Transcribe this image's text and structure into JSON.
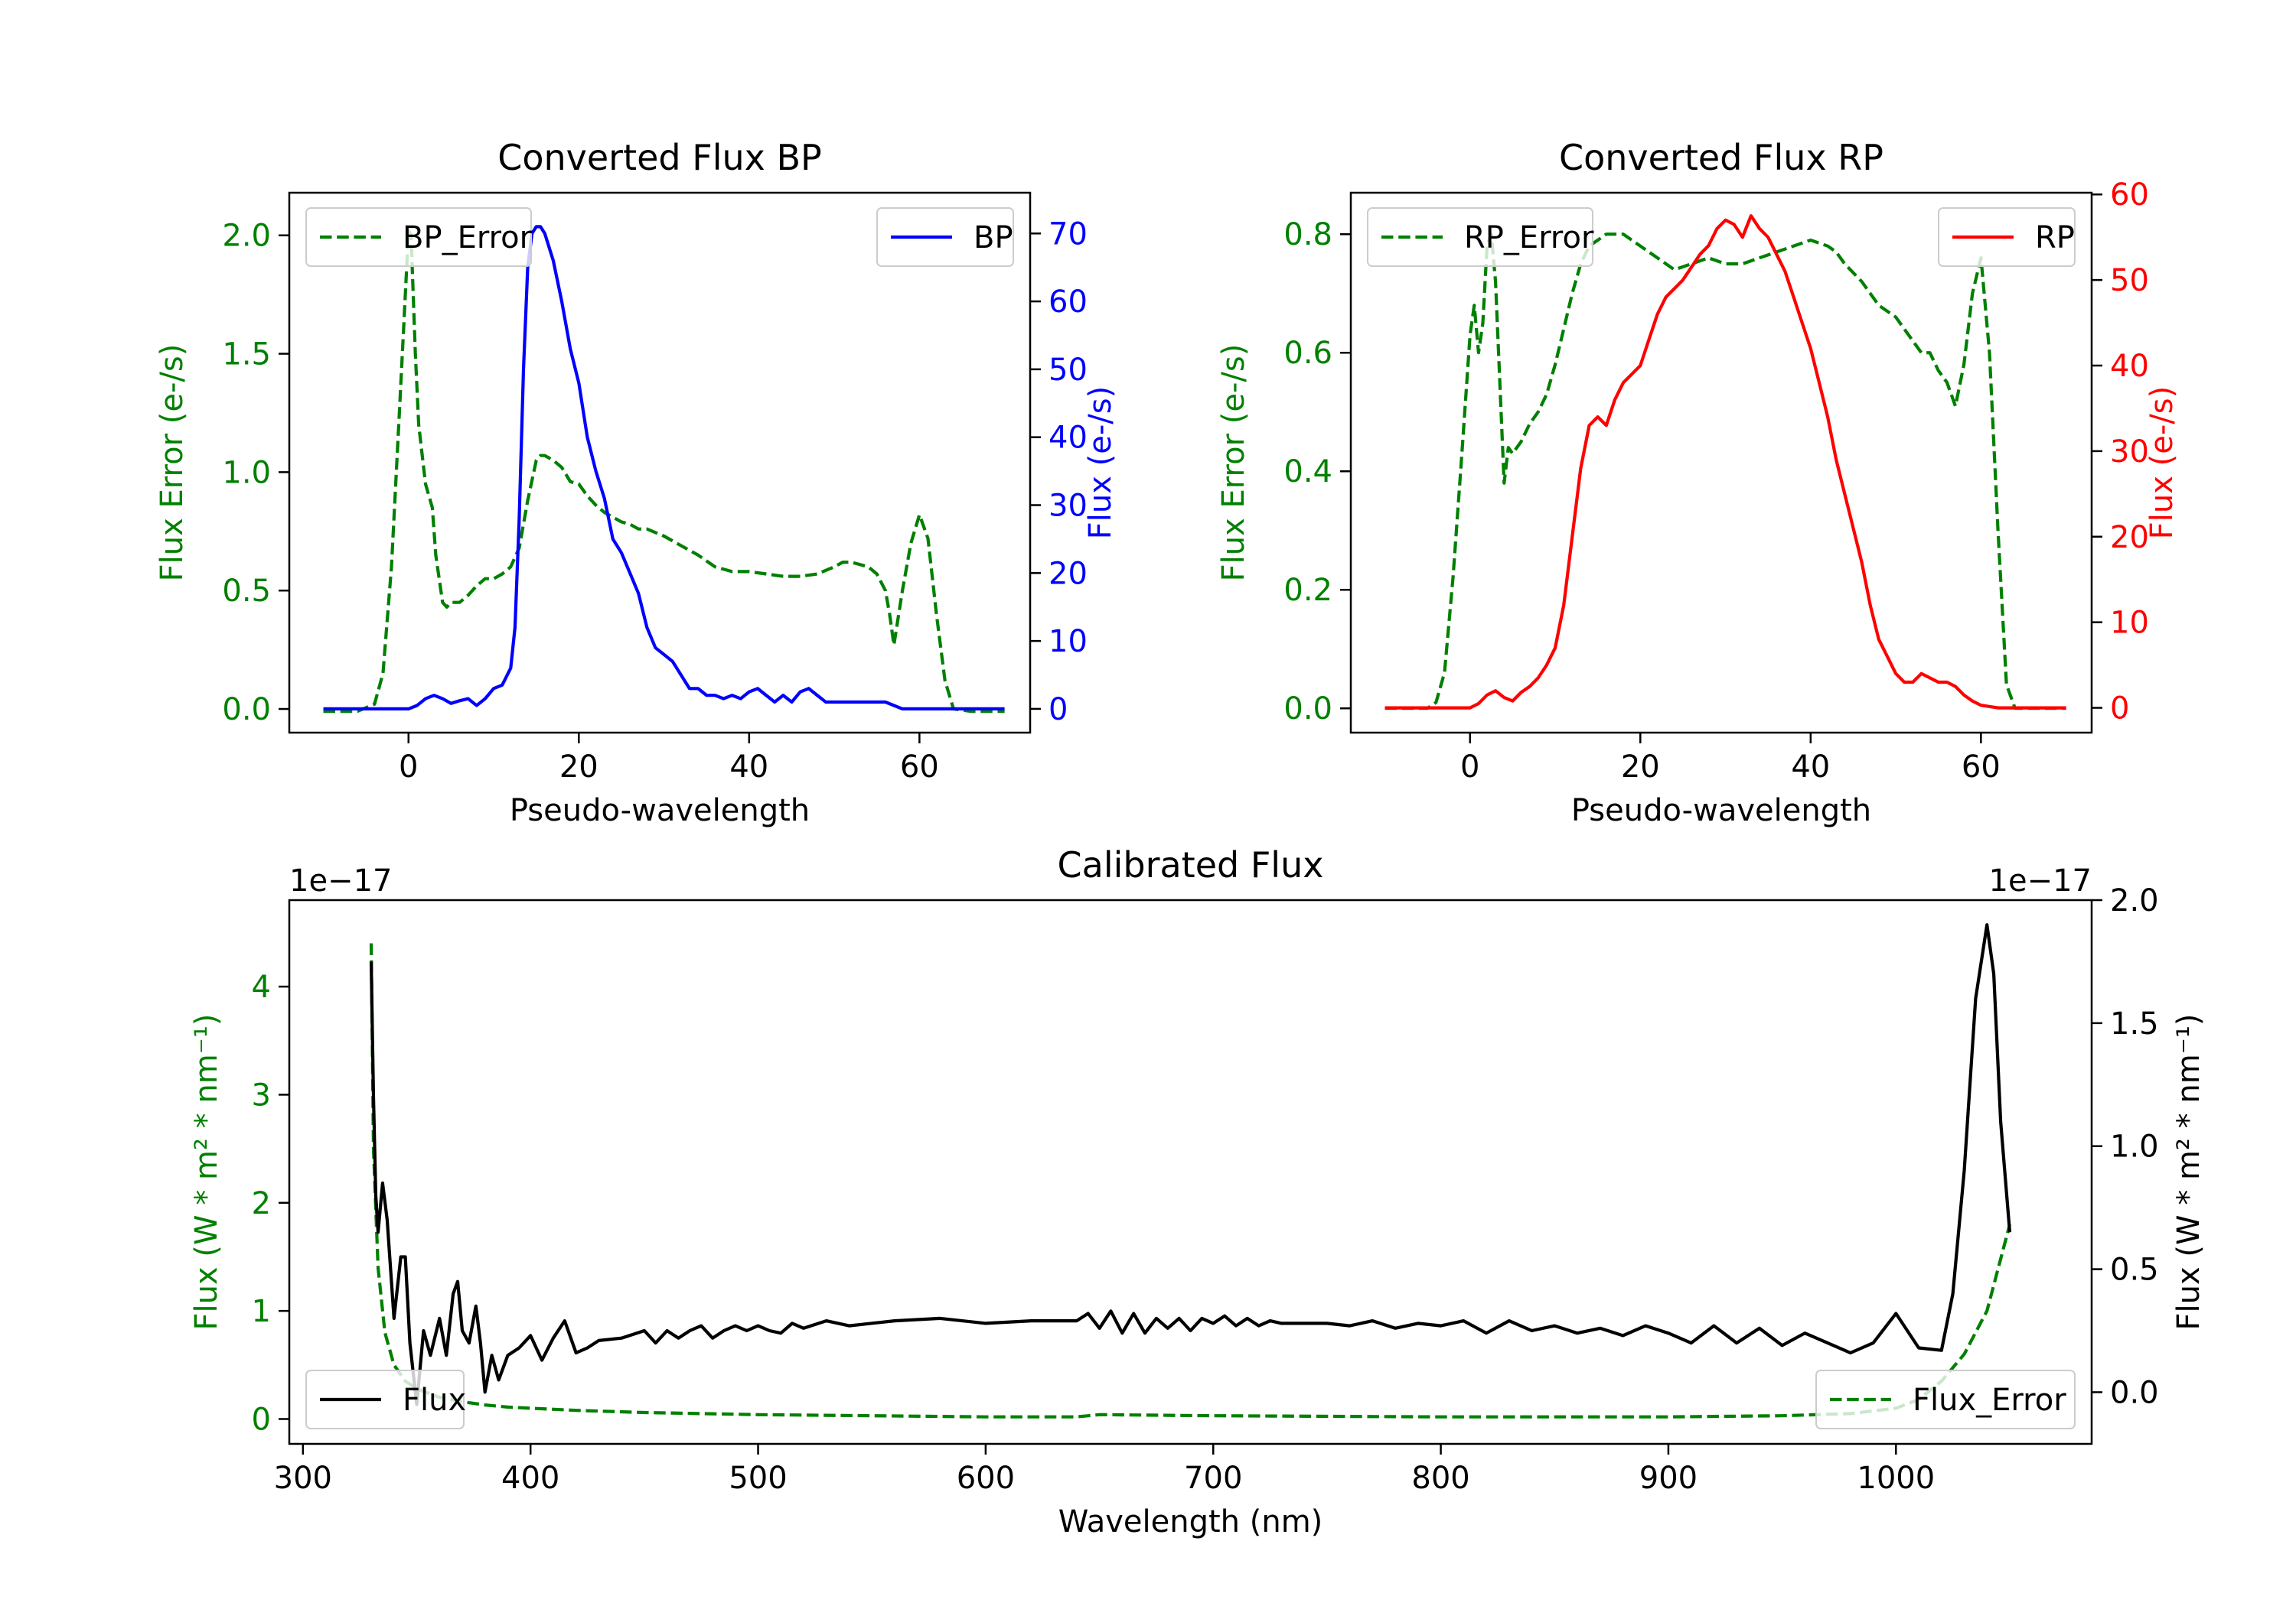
{
  "colors": {
    "error": "#008000",
    "bp": "#0000ff",
    "rp": "#ff0000",
    "flux": "#000000",
    "axis": "#000000"
  },
  "chart_data": [
    {
      "id": "bp",
      "type": "line",
      "title": "Converted Flux BP",
      "xlabel": "Pseudo-wavelength",
      "ylabel_left": "Flux Error (e-/s)",
      "ylabel_right": "Flux (e-/s)",
      "xlim": [
        -14,
        73
      ],
      "ylim_left": [
        -0.1,
        2.18
      ],
      "ylim_right": [
        -3.5,
        76
      ],
      "xticks": [
        0,
        20,
        40,
        60
      ],
      "yticks_left": [
        0.0,
        0.5,
        1.0,
        1.5,
        2.0
      ],
      "yticks_left_labels": [
        "0.0",
        "0.5",
        "1.0",
        "1.5",
        "2.0"
      ],
      "yticks_right": [
        0,
        10,
        20,
        30,
        40,
        50,
        60,
        70
      ],
      "yticks_right_labels": [
        "0",
        "10",
        "20",
        "30",
        "40",
        "50",
        "60",
        "70"
      ],
      "legend_left": {
        "label": "BP_Error",
        "position": "upper left"
      },
      "legend_right": {
        "label": "BP",
        "position": "upper right"
      },
      "series": [
        {
          "name": "BP_Error",
          "axis": "left",
          "style": "dashed",
          "color": "#008000",
          "x": [
            -10,
            -6,
            -4,
            -3,
            -2,
            -1,
            0,
            0.3,
            0.8,
            1.2,
            2,
            2.8,
            3.2,
            4,
            4.5,
            5,
            6,
            7,
            8,
            9,
            10,
            11,
            12,
            13,
            14,
            15,
            15.5,
            16,
            17,
            18,
            19,
            20,
            21,
            22,
            23,
            24,
            25,
            26,
            27,
            28,
            30,
            32,
            34,
            36,
            38,
            40,
            42,
            44,
            46,
            48,
            50,
            51,
            52,
            54,
            55,
            56,
            56.5,
            57,
            58,
            59,
            60,
            61,
            62,
            63,
            64,
            66,
            68,
            70
          ],
          "y": [
            -0.01,
            -0.01,
            0.02,
            0.15,
            0.6,
            1.3,
            2.02,
            2.0,
            1.5,
            1.2,
            0.95,
            0.85,
            0.65,
            0.45,
            0.43,
            0.45,
            0.45,
            0.48,
            0.52,
            0.55,
            0.55,
            0.57,
            0.6,
            0.68,
            0.88,
            1.05,
            1.07,
            1.07,
            1.05,
            1.02,
            0.96,
            0.95,
            0.9,
            0.86,
            0.83,
            0.81,
            0.79,
            0.78,
            0.76,
            0.76,
            0.73,
            0.69,
            0.65,
            0.6,
            0.58,
            0.58,
            0.57,
            0.56,
            0.56,
            0.57,
            0.6,
            0.62,
            0.62,
            0.6,
            0.57,
            0.5,
            0.4,
            0.27,
            0.5,
            0.7,
            0.82,
            0.72,
            0.4,
            0.12,
            0.0,
            -0.01,
            -0.01,
            -0.01
          ]
        },
        {
          "name": "BP",
          "axis": "right",
          "style": "solid",
          "color": "#0000ff",
          "x": [
            -10,
            -5,
            -2,
            0,
            1,
            2,
            3,
            4,
            5,
            6,
            7,
            8,
            9,
            10,
            11,
            12,
            12.5,
            13,
            13.5,
            14,
            14.5,
            15,
            15.5,
            16,
            17,
            18,
            19,
            20,
            21,
            22,
            23,
            24,
            25,
            26,
            27,
            28,
            29,
            30,
            31,
            32,
            33,
            34,
            35,
            36,
            37,
            38,
            39,
            40,
            41,
            42,
            43,
            44,
            45,
            46,
            47,
            48,
            49,
            50,
            52,
            54,
            56,
            58,
            60,
            62,
            64,
            66,
            68,
            70
          ],
          "y": [
            0,
            0,
            0,
            0,
            0.5,
            1.5,
            2,
            1.5,
            0.8,
            1.2,
            1.5,
            0.5,
            1.5,
            3,
            3.5,
            6,
            12,
            28,
            50,
            65,
            70,
            71,
            71,
            70,
            66,
            60,
            53,
            48,
            40,
            35,
            31,
            25,
            23,
            20,
            17,
            12,
            9,
            8,
            7,
            5,
            3,
            3,
            2,
            2,
            1.5,
            2,
            1.5,
            2.5,
            3,
            2,
            1,
            2,
            1,
            2.5,
            3,
            2,
            1,
            1,
            1,
            1,
            1,
            0,
            0,
            0,
            0,
            0,
            0,
            0
          ]
        }
      ]
    },
    {
      "id": "rp",
      "type": "line",
      "title": "Converted Flux RP",
      "xlabel": "Pseudo-wavelength",
      "ylabel_left": "Flux Error (e-/s)",
      "ylabel_right": "Flux (e-/s)",
      "xlim": [
        -14,
        73
      ],
      "ylim_left": [
        -0.041,
        0.87
      ],
      "ylim_right": [
        -2.9,
        60.2
      ],
      "xticks": [
        0,
        20,
        40,
        60
      ],
      "yticks_left": [
        0.0,
        0.2,
        0.4,
        0.6,
        0.8
      ],
      "yticks_left_labels": [
        "0.0",
        "0.2",
        "0.4",
        "0.6",
        "0.8"
      ],
      "yticks_right": [
        0,
        10,
        20,
        30,
        40,
        50,
        60
      ],
      "yticks_right_labels": [
        "0",
        "10",
        "20",
        "30",
        "40",
        "50",
        "60"
      ],
      "legend_left": {
        "label": "RP_Error",
        "position": "upper left"
      },
      "legend_right": {
        "label": "RP",
        "position": "upper right"
      },
      "series": [
        {
          "name": "RP_Error",
          "axis": "left",
          "style": "dashed",
          "color": "#008000",
          "x": [
            -10,
            -5,
            -4,
            -3,
            -2,
            -1,
            0,
            0.5,
            1,
            1.5,
            2,
            2.5,
            3,
            3.5,
            4,
            4.5,
            5,
            6,
            7,
            8,
            9,
            10,
            11,
            12,
            13,
            14,
            15,
            16,
            17,
            18,
            19,
            20,
            22,
            24,
            26,
            28,
            30,
            32,
            34,
            36,
            38,
            40,
            42,
            43,
            44,
            46,
            48,
            50,
            52,
            53,
            54,
            55,
            56,
            57,
            58,
            59,
            60,
            61,
            62,
            63,
            64,
            66,
            68,
            70
          ],
          "y": [
            0,
            0,
            0.01,
            0.06,
            0.22,
            0.42,
            0.63,
            0.68,
            0.6,
            0.65,
            0.78,
            0.8,
            0.72,
            0.55,
            0.38,
            0.44,
            0.43,
            0.45,
            0.48,
            0.5,
            0.53,
            0.58,
            0.64,
            0.7,
            0.75,
            0.78,
            0.79,
            0.8,
            0.8,
            0.8,
            0.79,
            0.78,
            0.76,
            0.74,
            0.75,
            0.76,
            0.75,
            0.75,
            0.76,
            0.77,
            0.78,
            0.79,
            0.78,
            0.77,
            0.75,
            0.72,
            0.68,
            0.66,
            0.62,
            0.6,
            0.6,
            0.57,
            0.55,
            0.51,
            0.58,
            0.7,
            0.76,
            0.6,
            0.3,
            0.04,
            0.0,
            0,
            0,
            0
          ]
        },
        {
          "name": "RP",
          "axis": "right",
          "style": "solid",
          "color": "#ff0000",
          "x": [
            -10,
            -5,
            -2,
            0,
            1,
            2,
            3,
            4,
            5,
            6,
            7,
            8,
            9,
            10,
            11,
            12,
            13,
            14,
            15,
            16,
            17,
            18,
            19,
            20,
            21,
            22,
            23,
            24,
            25,
            26,
            27,
            28,
            29,
            30,
            31,
            32,
            33,
            34,
            35,
            36,
            37,
            38,
            39,
            40,
            41,
            42,
            43,
            44,
            45,
            46,
            47,
            48,
            49,
            50,
            51,
            52,
            53,
            54,
            55,
            56,
            57,
            58,
            59,
            60,
            62,
            64,
            66,
            68,
            70
          ],
          "y": [
            0,
            0,
            0,
            0,
            0.5,
            1.5,
            2,
            1.2,
            0.8,
            1.8,
            2.5,
            3.5,
            5,
            7,
            12,
            20,
            28,
            33,
            34,
            33,
            36,
            38,
            39,
            40,
            43,
            46,
            48,
            49,
            50,
            51.5,
            53,
            54,
            56,
            57,
            56.5,
            55,
            57.5,
            56,
            55,
            53,
            51,
            48,
            45,
            42,
            38,
            34,
            29,
            25,
            21,
            17,
            12,
            8,
            6,
            4,
            3,
            3,
            4,
            3.5,
            3,
            3,
            2.5,
            1.5,
            0.8,
            0.3,
            0,
            0,
            0,
            0,
            0
          ]
        }
      ]
    },
    {
      "id": "calibrated",
      "type": "line",
      "title": "Calibrated Flux",
      "xlabel": "Wavelength (nm)",
      "ylabel_left": "Flux (W * m² * nm⁻¹)",
      "ylabel_right": "Flux (W * m² * nm⁻¹)",
      "offset_left": "1e−17",
      "offset_right": "1e−17",
      "xlim": [
        294,
        1086
      ],
      "ylim_left": [
        -0.23,
        4.8
      ],
      "ylim_right": [
        -0.21,
        2.0
      ],
      "xticks": [
        300,
        400,
        500,
        600,
        700,
        800,
        900,
        1000
      ],
      "yticks_left": [
        0,
        1,
        2,
        3,
        4
      ],
      "yticks_left_labels": [
        "0",
        "1",
        "2",
        "3",
        "4"
      ],
      "yticks_right": [
        0.0,
        0.5,
        1.0,
        1.5,
        2.0
      ],
      "yticks_right_labels": [
        "0.0",
        "0.5",
        "1.0",
        "1.5",
        "2.0"
      ],
      "legend_left": {
        "label": "Flux",
        "position": "lower left"
      },
      "legend_right": {
        "label": "Flux_Error",
        "position": "lower right"
      },
      "series": [
        {
          "name": "Flux_Error",
          "axis": "left",
          "style": "dashed",
          "color": "#008000",
          "x": [
            330,
            331,
            333,
            336,
            340,
            345,
            350,
            360,
            370,
            380,
            390,
            400,
            420,
            450,
            500,
            550,
            600,
            640,
            650,
            700,
            800,
            900,
            950,
            980,
            1000,
            1010,
            1020,
            1030,
            1040,
            1045,
            1050
          ],
          "y": [
            4.4,
            2.5,
            1.4,
            0.8,
            0.5,
            0.35,
            0.28,
            0.2,
            0.16,
            0.13,
            0.11,
            0.1,
            0.08,
            0.06,
            0.04,
            0.03,
            0.02,
            0.02,
            0.04,
            0.03,
            0.02,
            0.02,
            0.03,
            0.05,
            0.1,
            0.18,
            0.35,
            0.6,
            1.0,
            1.4,
            1.8
          ]
        },
        {
          "name": "Flux",
          "axis": "right",
          "style": "solid",
          "color": "#000000",
          "x": [
            330,
            331,
            332,
            333,
            335,
            337,
            340,
            343,
            345,
            347,
            350,
            353,
            356,
            360,
            363,
            366,
            368,
            370,
            373,
            376,
            378,
            380,
            383,
            386,
            390,
            395,
            400,
            405,
            410,
            415,
            420,
            425,
            430,
            440,
            450,
            455,
            460,
            465,
            470,
            475,
            480,
            485,
            490,
            495,
            500,
            505,
            510,
            515,
            520,
            530,
            540,
            560,
            580,
            600,
            620,
            640,
            645,
            650,
            655,
            660,
            665,
            670,
            675,
            680,
            685,
            690,
            695,
            700,
            705,
            710,
            715,
            720,
            725,
            730,
            740,
            750,
            760,
            770,
            780,
            790,
            800,
            810,
            820,
            830,
            840,
            850,
            860,
            870,
            880,
            890,
            900,
            910,
            920,
            930,
            940,
            950,
            960,
            970,
            980,
            990,
            1000,
            1010,
            1020,
            1025,
            1030,
            1035,
            1040,
            1043,
            1046,
            1050
          ],
          "y": [
            1.75,
            1.2,
            0.8,
            0.65,
            0.85,
            0.7,
            0.3,
            0.55,
            0.55,
            0.2,
            -0.05,
            0.25,
            0.15,
            0.3,
            0.15,
            0.4,
            0.45,
            0.25,
            0.2,
            0.35,
            0.2,
            0.0,
            0.15,
            0.05,
            0.15,
            0.18,
            0.23,
            0.13,
            0.22,
            0.29,
            0.16,
            0.18,
            0.21,
            0.22,
            0.25,
            0.2,
            0.25,
            0.22,
            0.25,
            0.27,
            0.22,
            0.25,
            0.27,
            0.25,
            0.27,
            0.25,
            0.24,
            0.28,
            0.26,
            0.29,
            0.27,
            0.29,
            0.3,
            0.28,
            0.29,
            0.29,
            0.32,
            0.26,
            0.33,
            0.24,
            0.32,
            0.24,
            0.3,
            0.26,
            0.3,
            0.25,
            0.3,
            0.28,
            0.31,
            0.27,
            0.3,
            0.27,
            0.29,
            0.28,
            0.28,
            0.28,
            0.27,
            0.29,
            0.26,
            0.28,
            0.27,
            0.29,
            0.24,
            0.29,
            0.25,
            0.27,
            0.24,
            0.26,
            0.23,
            0.27,
            0.24,
            0.2,
            0.27,
            0.2,
            0.26,
            0.19,
            0.24,
            0.2,
            0.16,
            0.2,
            0.32,
            0.18,
            0.17,
            0.4,
            0.9,
            1.6,
            1.9,
            1.7,
            1.1,
            0.65
          ]
        }
      ]
    }
  ]
}
